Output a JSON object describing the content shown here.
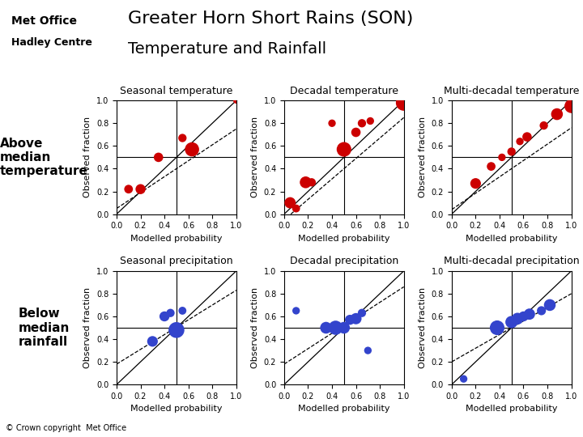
{
  "title": "Greater Horn Short Rains (SON)",
  "subtitle": "Temperature and Rainfall",
  "annotations": [
    "Met Office",
    "Hadley Centre",
    "Above\nmedian\ntemperature",
    "Below\nmedian\nrainfall",
    "© Crown copyright  Met Office"
  ],
  "chart_data": [
    {
      "type": "scatter",
      "title": "Seasonal temperature",
      "x_label": "Modelled probability",
      "y_label": "Observed fraction",
      "xlim": [
        0,
        1
      ],
      "ylim": [
        0,
        1
      ],
      "xticks": [
        {
          "value": 0,
          "label": "0.0"
        },
        0.2,
        0.4,
        0.6,
        0.8,
        {
          "value": 1,
          "label": "1.0"
        }
      ],
      "yticks": [
        {
          "value": 0,
          "label": "0.0"
        },
        0.2,
        0.4,
        0.6,
        0.8,
        {
          "value": 1,
          "label": "1.0"
        }
      ],
      "grid": false,
      "color": "#cc0000",
      "x": [
        0.1,
        0.2,
        0.35,
        0.55,
        0.63,
        1.0
      ],
      "values": [
        0.22,
        0.22,
        0.5,
        0.67,
        0.57,
        1.0
      ],
      "sizes": [
        60,
        80,
        70,
        55,
        160,
        30
      ],
      "lines": [
        {
          "slope": 1,
          "intercept": 0,
          "line_style": "solid",
          "color": "#000000"
        },
        {
          "slope": 0.7,
          "intercept": 0.05,
          "line_style": "dashed",
          "color": "#000000"
        }
      ],
      "ref_lines": [
        {
          "x": 0.5,
          "color": "#000000"
        },
        {
          "y": 0.5,
          "color": "#000000"
        }
      ]
    },
    {
      "type": "scatter",
      "title": "Decadal temperature",
      "x_label": "Modelled probability",
      "y_label": "Observed fraction",
      "xlim": [
        0,
        1
      ],
      "ylim": [
        0,
        1
      ],
      "xticks": [
        {
          "value": 0,
          "label": "0.0"
        },
        0.2,
        0.4,
        0.6,
        0.8,
        {
          "value": 1,
          "label": "1.0"
        }
      ],
      "yticks": [
        {
          "value": 0,
          "label": "0.0"
        },
        0.2,
        0.4,
        0.6,
        0.8,
        {
          "value": 1,
          "label": "1.0"
        }
      ],
      "grid": false,
      "color": "#cc0000",
      "x": [
        0.05,
        0.1,
        0.18,
        0.23,
        0.4,
        0.5,
        0.6,
        0.65,
        0.72,
        1.0
      ],
      "values": [
        0.1,
        0.05,
        0.28,
        0.28,
        0.8,
        0.57,
        0.72,
        0.8,
        0.82,
        0.98
      ],
      "sizes": [
        100,
        50,
        110,
        55,
        45,
        170,
        70,
        55,
        45,
        200
      ],
      "lines": [
        {
          "slope": 1,
          "intercept": 0,
          "line_style": "solid",
          "color": "#000000"
        },
        {
          "slope": 0.9,
          "intercept": -0.05,
          "line_style": "dashed",
          "color": "#000000"
        }
      ],
      "ref_lines": [
        {
          "x": 0.5,
          "color": "#000000"
        },
        {
          "y": 0.5,
          "color": "#000000"
        }
      ]
    },
    {
      "type": "scatter",
      "title": "Multi-decadal temperature",
      "x_label": "Modelled probability",
      "y_label": "Observed fraction",
      "xlim": [
        0,
        1
      ],
      "ylim": [
        0,
        1
      ],
      "xticks": [
        {
          "value": 0,
          "label": "0.0"
        },
        0.2,
        0.4,
        0.6,
        0.8,
        {
          "value": 1,
          "label": "1.0"
        }
      ],
      "yticks": [
        {
          "value": 0,
          "label": "0.0"
        },
        0.2,
        0.4,
        0.6,
        0.8,
        {
          "value": 1,
          "label": "1.0"
        }
      ],
      "grid": false,
      "color": "#cc0000",
      "x": [
        0.2,
        0.33,
        0.42,
        0.5,
        0.57,
        0.63,
        0.77,
        0.88,
        1.0
      ],
      "values": [
        0.27,
        0.42,
        0.5,
        0.55,
        0.64,
        0.68,
        0.78,
        0.88,
        0.95
      ],
      "sizes": [
        90,
        60,
        45,
        55,
        45,
        70,
        55,
        110,
        150
      ],
      "lines": [
        {
          "slope": 1,
          "intercept": 0,
          "line_style": "solid",
          "color": "#000000"
        },
        {
          "slope": 0.72,
          "intercept": 0.04,
          "line_style": "dashed",
          "color": "#000000"
        }
      ],
      "ref_lines": [
        {
          "x": 0.5,
          "color": "#000000"
        },
        {
          "y": 0.5,
          "color": "#000000"
        }
      ]
    },
    {
      "type": "scatter",
      "title": "Seasonal precipitation",
      "x_label": "Modelled probability",
      "y_label": "Observed fraction",
      "xlim": [
        0,
        1
      ],
      "ylim": [
        0,
        1
      ],
      "xticks": [
        {
          "value": 0,
          "label": "0.0"
        },
        0.2,
        0.4,
        0.6,
        0.8,
        {
          "value": 1,
          "label": "1.0"
        }
      ],
      "yticks": [
        {
          "value": 0,
          "label": "0.0"
        },
        0.2,
        0.4,
        0.6,
        0.8,
        {
          "value": 1,
          "label": "1.0"
        }
      ],
      "grid": false,
      "color": "#3344cc",
      "x": [
        0.3,
        0.4,
        0.45,
        0.5,
        0.55
      ],
      "values": [
        0.38,
        0.6,
        0.63,
        0.48,
        0.65
      ],
      "sizes": [
        90,
        80,
        55,
        200,
        50
      ],
      "lines": [
        {
          "slope": 1,
          "intercept": 0,
          "line_style": "solid",
          "color": "#000000"
        },
        {
          "slope": 0.65,
          "intercept": 0.18,
          "line_style": "dashed",
          "color": "#000000"
        }
      ],
      "ref_lines": [
        {
          "x": 0.5,
          "color": "#000000"
        },
        {
          "y": 0.5,
          "color": "#000000"
        }
      ]
    },
    {
      "type": "scatter",
      "title": "Decadal precipitation",
      "x_label": "Modelled probability",
      "y_label": "Observed fraction",
      "xlim": [
        0,
        1
      ],
      "ylim": [
        0,
        1
      ],
      "xticks": [
        {
          "value": 0,
          "label": "0.0"
        },
        0.2,
        0.4,
        0.6,
        0.8,
        {
          "value": 1,
          "label": "1.0"
        }
      ],
      "yticks": [
        {
          "value": 0,
          "label": "0.0"
        },
        0.2,
        0.4,
        0.6,
        0.8,
        {
          "value": 1,
          "label": "1.0"
        }
      ],
      "grid": false,
      "color": "#3344cc",
      "x": [
        0.1,
        0.35,
        0.43,
        0.5,
        0.55,
        0.6,
        0.65,
        0.7
      ],
      "values": [
        0.65,
        0.5,
        0.5,
        0.5,
        0.57,
        0.58,
        0.63,
        0.3
      ],
      "sizes": [
        45,
        110,
        160,
        110,
        80,
        100,
        55,
        45
      ],
      "lines": [
        {
          "slope": 1,
          "intercept": 0,
          "line_style": "solid",
          "color": "#000000"
        },
        {
          "slope": 0.68,
          "intercept": 0.18,
          "line_style": "dashed",
          "color": "#000000"
        }
      ],
      "ref_lines": [
        {
          "x": 0.5,
          "color": "#000000"
        },
        {
          "y": 0.5,
          "color": "#000000"
        }
      ]
    },
    {
      "type": "scatter",
      "title": "Multi-decadal precipitation",
      "x_label": "Modelled probability",
      "y_label": "Observed fraction",
      "xlim": [
        0,
        1
      ],
      "ylim": [
        0,
        1
      ],
      "xticks": [
        {
          "value": 0,
          "label": "0.0"
        },
        0.2,
        0.4,
        0.6,
        0.8,
        {
          "value": 1,
          "label": "1.0"
        }
      ],
      "yticks": [
        {
          "value": 0,
          "label": "0.0"
        },
        0.2,
        0.4,
        0.6,
        0.8,
        {
          "value": 1,
          "label": "1.0"
        }
      ],
      "grid": false,
      "color": "#3344cc",
      "x": [
        0.1,
        0.38,
        0.5,
        0.55,
        0.6,
        0.65,
        0.75,
        0.82
      ],
      "values": [
        0.05,
        0.5,
        0.55,
        0.58,
        0.6,
        0.62,
        0.65,
        0.7
      ],
      "sizes": [
        45,
        170,
        120,
        110,
        80,
        100,
        65,
        110
      ],
      "lines": [
        {
          "slope": 1,
          "intercept": 0,
          "line_style": "solid",
          "color": "#000000"
        },
        {
          "slope": 0.6,
          "intercept": 0.2,
          "line_style": "dashed",
          "color": "#000000"
        }
      ],
      "ref_lines": [
        {
          "x": 0.5,
          "color": "#000000"
        },
        {
          "y": 0.5,
          "color": "#000000"
        }
      ]
    }
  ]
}
